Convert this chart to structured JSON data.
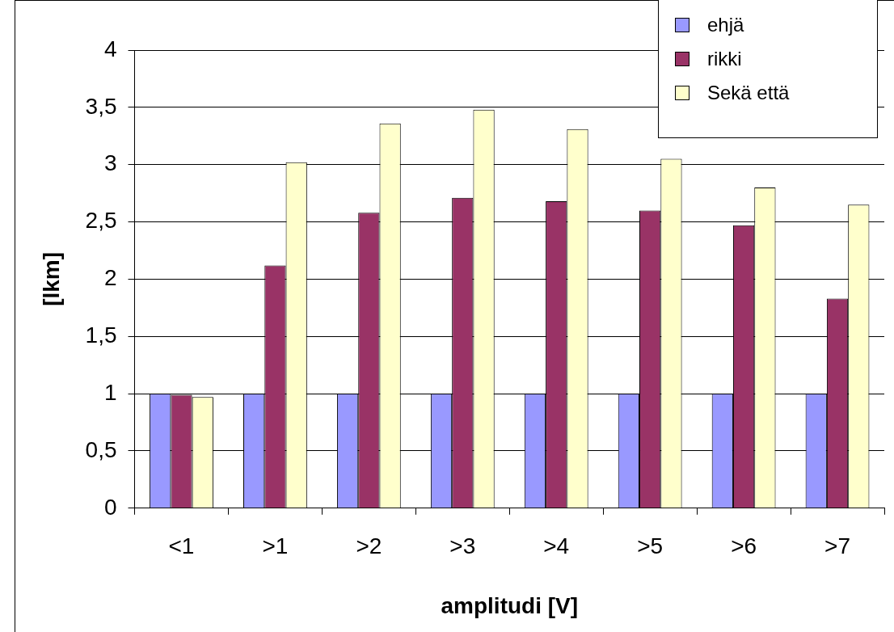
{
  "chart_data": {
    "type": "bar",
    "xlabel": "amplitudi [V]",
    "ylabel": "[lkm]",
    "categories": [
      "<1",
      ">1",
      ">2",
      ">3",
      ">4",
      ">5",
      ">6",
      ">7"
    ],
    "series": [
      {
        "name": "ehjä",
        "color": "#9999ff",
        "values": [
          1,
          1,
          1,
          1,
          1,
          1,
          1,
          1
        ]
      },
      {
        "name": "rikki",
        "color": "#993366",
        "values": [
          0.99,
          2.12,
          2.58,
          2.71,
          2.68,
          2.6,
          2.47,
          1.83
        ]
      },
      {
        "name": "Sekä että",
        "color": "#ffffcc",
        "values": [
          0.97,
          3.02,
          3.36,
          3.48,
          3.31,
          3.05,
          2.8,
          2.65
        ]
      }
    ],
    "ylim": [
      0,
      4
    ],
    "yticks": [
      0,
      {
        "value": 0.5,
        "label": "0,5"
      },
      1,
      {
        "value": 1.5,
        "label": "1,5"
      },
      2,
      {
        "value": 2.5,
        "label": "2,5"
      },
      3,
      {
        "value": 3.5,
        "label": "3,5"
      },
      4
    ],
    "grid": "y",
    "legend": "top right"
  }
}
